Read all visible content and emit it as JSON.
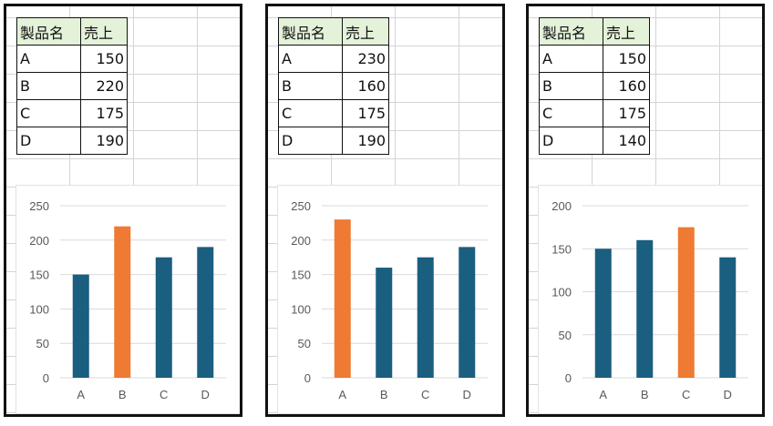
{
  "colors": {
    "bar_default": "#1a5e80",
    "bar_highlight": "#ee7a33",
    "header_fill": "#e3f2d9",
    "gridline": "#d9d9d9",
    "axis_text": "#595959"
  },
  "panels": [
    {
      "table": {
        "header": [
          "製品名",
          "売上"
        ],
        "rows": [
          [
            "A",
            "150"
          ],
          [
            "B",
            "220"
          ],
          [
            "C",
            "175"
          ],
          [
            "D",
            "190"
          ]
        ]
      },
      "chart_data": {
        "type": "bar",
        "categories": [
          "A",
          "B",
          "C",
          "D"
        ],
        "values": [
          150,
          220,
          175,
          190
        ],
        "highlight_index": 1,
        "ylim": [
          0,
          250
        ],
        "yticks": [
          0,
          50,
          100,
          150,
          200,
          250
        ],
        "grid": true
      }
    },
    {
      "table": {
        "header": [
          "製品名",
          "売上"
        ],
        "rows": [
          [
            "A",
            "230"
          ],
          [
            "B",
            "160"
          ],
          [
            "C",
            "175"
          ],
          [
            "D",
            "190"
          ]
        ]
      },
      "chart_data": {
        "type": "bar",
        "categories": [
          "A",
          "B",
          "C",
          "D"
        ],
        "values": [
          230,
          160,
          175,
          190
        ],
        "highlight_index": 0,
        "ylim": [
          0,
          250
        ],
        "yticks": [
          0,
          50,
          100,
          150,
          200,
          250
        ],
        "grid": true
      }
    },
    {
      "table": {
        "header": [
          "製品名",
          "売上"
        ],
        "rows": [
          [
            "A",
            "150"
          ],
          [
            "B",
            "160"
          ],
          [
            "C",
            "175"
          ],
          [
            "D",
            "140"
          ]
        ]
      },
      "chart_data": {
        "type": "bar",
        "categories": [
          "A",
          "B",
          "C",
          "D"
        ],
        "values": [
          150,
          160,
          175,
          140
        ],
        "highlight_index": 2,
        "ylim": [
          0,
          200
        ],
        "yticks": [
          0,
          50,
          100,
          150,
          200
        ],
        "grid": true
      }
    }
  ]
}
